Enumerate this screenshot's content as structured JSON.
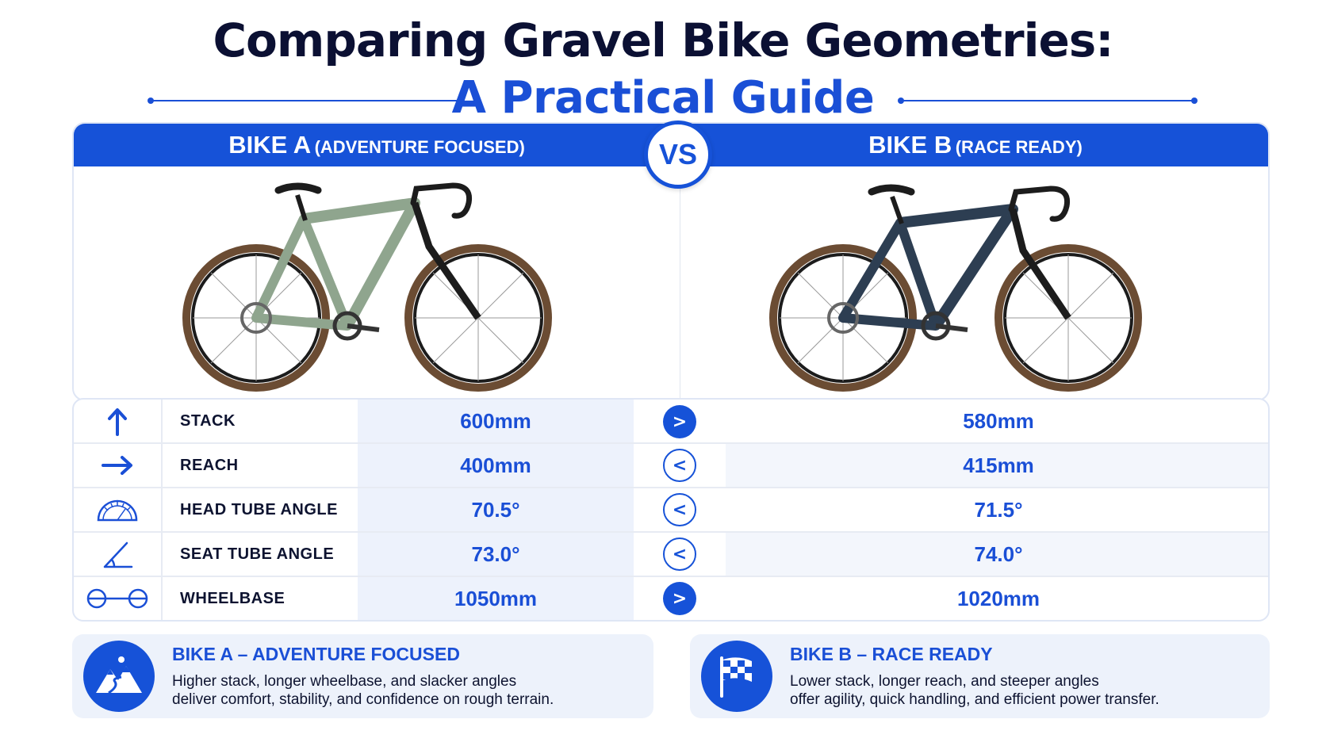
{
  "title": {
    "line1": "Comparing Gravel Bike Geometries:",
    "line2": "A Practical Guide"
  },
  "bikes": {
    "a": {
      "name": "BIKE A",
      "subtitle": "(ADVENTURE FOCUSED)",
      "frame_color": "#8fa58e"
    },
    "b": {
      "name": "BIKE B",
      "subtitle": "(RACE READY)",
      "frame_color": "#2d3e52"
    }
  },
  "vs_label": "VS",
  "rows": [
    {
      "icon": "arrow-up-icon",
      "label": "STACK",
      "a": "600mm",
      "cmp": ">",
      "b": "580mm"
    },
    {
      "icon": "arrow-right-icon",
      "label": "REACH",
      "a": "400mm",
      "cmp": "<",
      "b": "415mm"
    },
    {
      "icon": "protractor-icon",
      "label": "HEAD TUBE ANGLE",
      "a": "70.5°",
      "cmp": "<",
      "b": "71.5°"
    },
    {
      "icon": "angle-icon",
      "label": "SEAT TUBE ANGLE",
      "a": "73.0°",
      "cmp": "<",
      "b": "74.0°"
    },
    {
      "icon": "wheelbase-icon",
      "label": "WHEELBASE",
      "a": "1050mm",
      "cmp": ">",
      "b": "1020mm"
    }
  ],
  "summaries": {
    "a": {
      "icon": "mountain-icon",
      "title": "BIKE A – ADVENTURE FOCUSED",
      "line1": "Higher stack, longer wheelbase, and slacker angles",
      "line2": "deliver comfort, stability, and confidence on rough terrain."
    },
    "b": {
      "icon": "checkered-flag-icon",
      "title": "BIKE B – RACE READY",
      "line1": "Lower stack, longer reach, and steeper angles",
      "line2": "offer agility, quick handling, and efficient power transfer."
    }
  },
  "colors": {
    "accent": "#1652d8",
    "title_dark": "#0b1033",
    "row_tint": "#edf2fc"
  }
}
